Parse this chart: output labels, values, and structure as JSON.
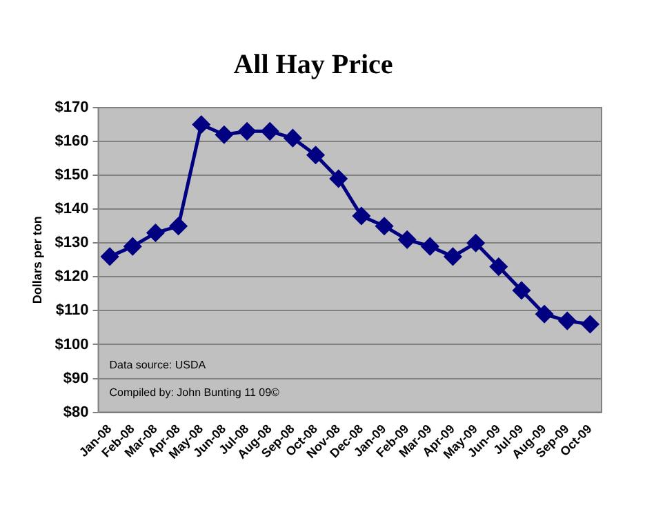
{
  "chart_data": {
    "type": "line",
    "title": "All Hay Price",
    "ylabel": "Dollars per ton",
    "categories": [
      "Jan-08",
      "Feb-08",
      "Mar-08",
      "Apr-08",
      "May-08",
      "Jun-08",
      "Jul-08",
      "Aug-08",
      "Sep-08",
      "Oct-08",
      "Nov-08",
      "Dec-08",
      "Jan-09",
      "Feb-09",
      "Mar-09",
      "Apr-09",
      "May-09",
      "Jun-09",
      "Jul-09",
      "Aug-09",
      "Sep-09",
      "Oct-09"
    ],
    "series": [
      {
        "color": "#000080",
        "values": [
          126,
          129,
          133,
          135,
          165,
          162,
          163,
          163,
          161,
          156,
          149,
          138,
          135,
          131,
          129,
          126,
          130,
          123,
          116,
          109,
          107,
          106
        ]
      }
    ],
    "ylim": [
      80,
      170
    ],
    "yticks": [
      {
        "value": 80,
        "label": "$80"
      },
      {
        "value": 90,
        "label": "$90"
      },
      {
        "value": 100,
        "label": "$100"
      },
      {
        "value": 110,
        "label": "$110"
      },
      {
        "value": 120,
        "label": "$120"
      },
      {
        "value": 130,
        "label": "$130"
      },
      {
        "value": 140,
        "label": "$140"
      },
      {
        "value": 150,
        "label": "$150"
      },
      {
        "value": 160,
        "label": "$160"
      },
      {
        "value": 170,
        "label": "$170"
      }
    ],
    "grid": "y",
    "legend": false,
    "marker": "diamond",
    "line_style": "solid",
    "annotations": [
      "Data source: USDA",
      "Compiled by: John Bunting 11 09©"
    ]
  }
}
